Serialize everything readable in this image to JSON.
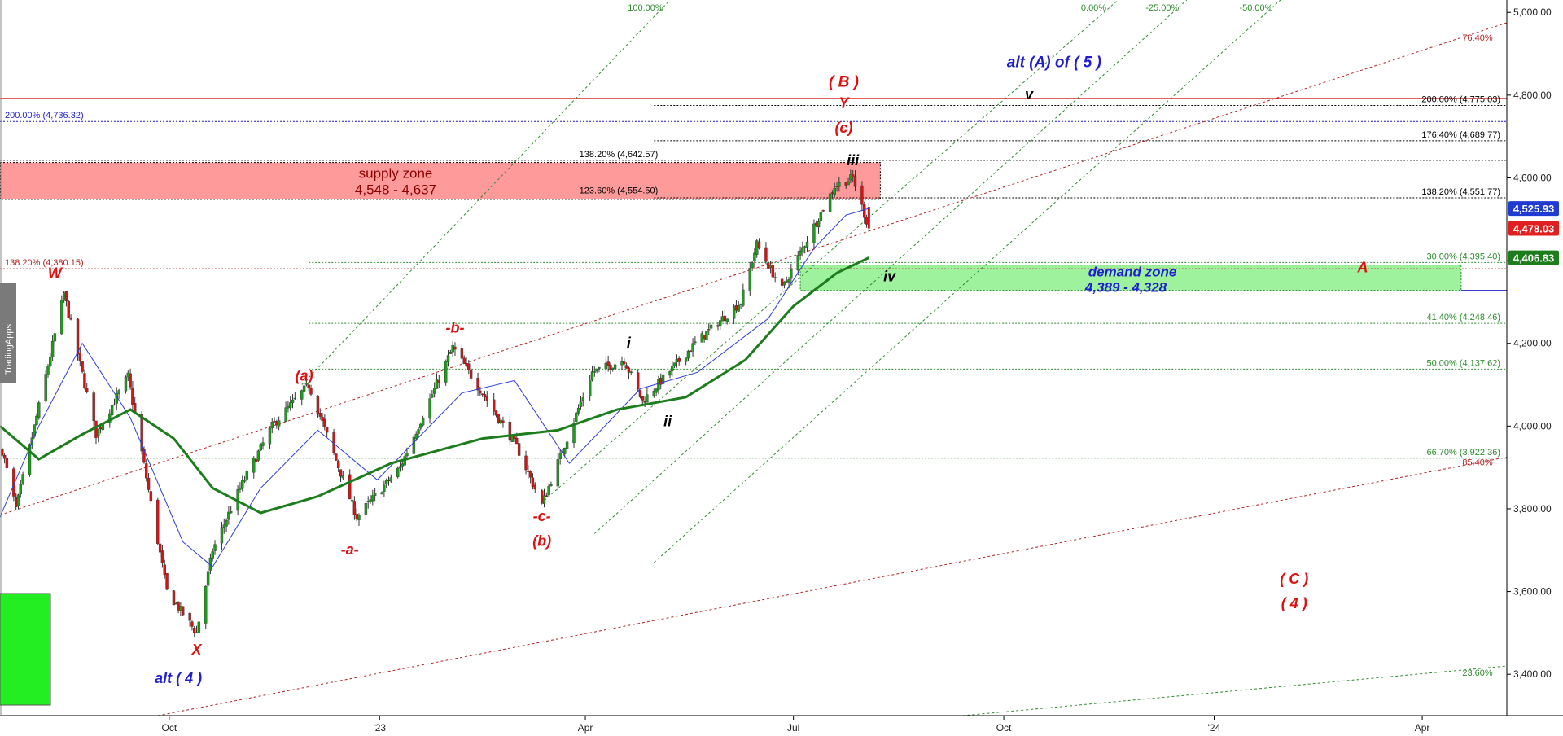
{
  "watermark": "TradingApps",
  "chart_data": {
    "type": "candlestick",
    "instrument_prices": {
      "last_price": "4,478.03",
      "blue_average": "4,525.93",
      "green_average": "4,406.83"
    },
    "y_axis": {
      "range": [
        3300,
        5030
      ],
      "ticks": [
        {
          "value": 5000,
          "label": "5,000.00"
        },
        {
          "value": 4800,
          "label": "4,800.00"
        },
        {
          "value": 4600,
          "label": "4,600.00"
        },
        {
          "value": 4400,
          "label": "4,400.00"
        },
        {
          "value": 4200,
          "label": "4,200.00"
        },
        {
          "value": 4000,
          "label": "4,000.00"
        },
        {
          "value": 3800,
          "label": "3,800.00"
        },
        {
          "value": 3600,
          "label": "3,600.00"
        },
        {
          "value": 3400,
          "label": "3,400.00"
        }
      ]
    },
    "x_axis": {
      "range": [
        "2022-07-19",
        "2024-05-08"
      ],
      "ticks": [
        {
          "date": "2022-10-01",
          "label": "Oct"
        },
        {
          "date": "2023-01-01",
          "label": "'23"
        },
        {
          "date": "2023-04-01",
          "label": "Apr"
        },
        {
          "date": "2023-07-01",
          "label": "Jul"
        },
        {
          "date": "2023-10-01",
          "label": "Oct"
        },
        {
          "date": "2024-01-01",
          "label": "'24"
        },
        {
          "date": "2024-04-01",
          "label": "Apr"
        }
      ]
    },
    "anchors": [
      {
        "date": "2022-07-20",
        "price": 3940
      },
      {
        "date": "2022-07-26",
        "price": 3800
      },
      {
        "date": "2022-08-16",
        "price": 4320
      },
      {
        "date": "2022-08-30",
        "price": 3980
      },
      {
        "date": "2022-09-13",
        "price": 4120
      },
      {
        "date": "2022-09-30",
        "price": 3600
      },
      {
        "date": "2022-10-13",
        "price": 3500
      },
      {
        "date": "2022-10-20",
        "price": 3700
      },
      {
        "date": "2022-11-01",
        "price": 3850
      },
      {
        "date": "2022-11-15",
        "price": 4000
      },
      {
        "date": "2022-12-01",
        "price": 4100
      },
      {
        "date": "2022-12-22",
        "price": 3780
      },
      {
        "date": "2023-01-10",
        "price": 3900
      },
      {
        "date": "2023-02-02",
        "price": 4190
      },
      {
        "date": "2023-02-15",
        "price": 4080
      },
      {
        "date": "2023-03-02",
        "price": 3950
      },
      {
        "date": "2023-03-13",
        "price": 3810
      },
      {
        "date": "2023-04-04",
        "price": 4130
      },
      {
        "date": "2023-04-18",
        "price": 4160
      },
      {
        "date": "2023-04-26",
        "price": 4060
      },
      {
        "date": "2023-05-19",
        "price": 4200
      },
      {
        "date": "2023-06-08",
        "price": 4300
      },
      {
        "date": "2023-06-15",
        "price": 4440
      },
      {
        "date": "2023-06-26",
        "price": 4330
      },
      {
        "date": "2023-07-05",
        "price": 4430
      },
      {
        "date": "2023-07-19",
        "price": 4580
      },
      {
        "date": "2023-07-27",
        "price": 4600
      },
      {
        "date": "2023-08-03",
        "price": 4478
      }
    ],
    "blue_ma_points": [
      {
        "date": "2022-07-19",
        "price": 3780
      },
      {
        "date": "2022-08-05",
        "price": 4000
      },
      {
        "date": "2022-08-24",
        "price": 4200
      },
      {
        "date": "2022-09-14",
        "price": 4020
      },
      {
        "date": "2022-10-07",
        "price": 3720
      },
      {
        "date": "2022-10-20",
        "price": 3660
      },
      {
        "date": "2022-11-10",
        "price": 3850
      },
      {
        "date": "2022-12-05",
        "price": 3990
      },
      {
        "date": "2022-12-31",
        "price": 3870
      },
      {
        "date": "2023-02-06",
        "price": 4080
      },
      {
        "date": "2023-03-01",
        "price": 4110
      },
      {
        "date": "2023-03-25",
        "price": 3910
      },
      {
        "date": "2023-04-25",
        "price": 4090
      },
      {
        "date": "2023-05-20",
        "price": 4130
      },
      {
        "date": "2023-06-20",
        "price": 4260
      },
      {
        "date": "2023-07-10",
        "price": 4430
      },
      {
        "date": "2023-07-24",
        "price": 4510
      },
      {
        "date": "2023-08-03",
        "price": 4526
      }
    ],
    "green_ma_points": [
      {
        "date": "2022-07-19",
        "price": 4000
      },
      {
        "date": "2022-08-05",
        "price": 3920
      },
      {
        "date": "2022-08-24",
        "price": 3980
      },
      {
        "date": "2022-09-14",
        "price": 4040
      },
      {
        "date": "2022-10-03",
        "price": 3970
      },
      {
        "date": "2022-10-20",
        "price": 3850
      },
      {
        "date": "2022-11-10",
        "price": 3790
      },
      {
        "date": "2022-12-05",
        "price": 3830
      },
      {
        "date": "2023-01-06",
        "price": 3910
      },
      {
        "date": "2023-02-15",
        "price": 3970
      },
      {
        "date": "2023-03-20",
        "price": 3990
      },
      {
        "date": "2023-04-15",
        "price": 4040
      },
      {
        "date": "2023-05-15",
        "price": 4070
      },
      {
        "date": "2023-06-10",
        "price": 4160
      },
      {
        "date": "2023-07-01",
        "price": 4290
      },
      {
        "date": "2023-07-20",
        "price": 4370
      },
      {
        "date": "2023-08-03",
        "price": 4407
      }
    ],
    "supply_zone": {
      "label": "supply zone",
      "range_label": "4,548 - 4,637",
      "low": 4548,
      "high": 4637,
      "from": "2022-07-19",
      "to": "2023-08-08",
      "color": "#ff9a9a"
    },
    "demand_zone": {
      "label": "demand zone",
      "range_label": "4,389 - 4,328",
      "low": 4328,
      "high": 4389,
      "from": "2023-07-04",
      "to": "2024-04-18",
      "color": "#9ef29e"
    },
    "fib_lines": [
      {
        "label": "200.00% (4,736.32)",
        "value": 4736.32,
        "color": "#1f1fcf",
        "style": "dotted",
        "from": "2022-07-19",
        "to": "2024-05-08",
        "label_side": "left"
      },
      {
        "label": "138.20% (4,380.15)",
        "value": 4380.15,
        "color": "#b22222",
        "style": "dotted",
        "from": "2022-07-19",
        "to": "2024-05-08",
        "label_side": "left"
      },
      {
        "label": "200.00% (4,775.03)",
        "value": 4775.03,
        "color": "#000000",
        "style": "dotted",
        "from": "2023-05-01",
        "to": "2024-05-08",
        "label_side": "right"
      },
      {
        "label": "176.40% (4,689.77)",
        "value": 4689.77,
        "color": "#000000",
        "style": "dotted",
        "from": "2023-05-01",
        "to": "2024-05-08",
        "label_side": "right"
      },
      {
        "label": "138.20% (4,551.77)",
        "value": 4551.77,
        "color": "#000000",
        "style": "dotted",
        "from": "2023-05-01",
        "to": "2024-05-08",
        "label_side": "right"
      },
      {
        "label": "138.20% (4,642.57)",
        "value": 4642.57,
        "color": "#000000",
        "style": "dotted",
        "from": "2022-07-19",
        "to": "2024-05-08",
        "label_side": "mid"
      },
      {
        "label": "123.60% (4,554.50)",
        "value": 4554.5,
        "color": "#000000",
        "style": "none",
        "from": "2022-07-19",
        "to": "2024-05-08",
        "label_side": "mid"
      },
      {
        "label": "30.00% (4,395.40)",
        "value": 4395.4,
        "color": "#2e8b2e",
        "style": "dotted",
        "from": "2022-12-01",
        "to": "2024-05-08",
        "label_side": "right"
      },
      {
        "label": "41.40% (4,248.46)",
        "value": 4248.46,
        "color": "#2e8b2e",
        "style": "dotted",
        "from": "2022-12-01",
        "to": "2024-05-08",
        "label_side": "right"
      },
      {
        "label": "50.00% (4,137.62)",
        "value": 4137.62,
        "color": "#2e8b2e",
        "style": "dotted",
        "from": "2022-12-01",
        "to": "2024-05-08",
        "label_side": "right"
      },
      {
        "label": "66.70% (3,922.36)",
        "value": 3922.36,
        "color": "#2e8b2e",
        "style": "dotted",
        "from": "2022-07-19",
        "to": "2024-05-08",
        "label_side": "right"
      }
    ],
    "red_line": {
      "value": 4792,
      "from": "2022-07-19",
      "to": "2024-05-08",
      "color": "#cc0000"
    },
    "trend_lines": [
      {
        "color": "#b22222",
        "from": {
          "date": "2022-07-19",
          "price": 3785
        },
        "to": {
          "date": "2024-05-08",
          "price": 4975
        },
        "label": "76.40%"
      },
      {
        "color": "#b22222",
        "from": {
          "date": "2022-09-26",
          "price": 3300
        },
        "to": {
          "date": "2024-05-08",
          "price": 3925
        },
        "label": "85.40%"
      },
      {
        "color": "#2e8b2e",
        "from": {
          "date": "2023-09-13",
          "price": 3300
        },
        "to": {
          "date": "2024-05-08",
          "price": 3420
        },
        "label": "23.60%"
      },
      {
        "color": "#2e8b2e",
        "from": {
          "date": "2022-11-28",
          "price": 4100
        },
        "to": {
          "date": "2023-05-08",
          "price": 5030
        },
        "label": "100.00%"
      },
      {
        "color": "#2e8b2e",
        "from": {
          "date": "2023-03-14",
          "price": 3820
        },
        "to": {
          "date": "2023-11-20",
          "price": 5030
        },
        "label": "0.00%"
      },
      {
        "color": "#2e8b2e",
        "from": {
          "date": "2023-04-05",
          "price": 3740
        },
        "to": {
          "date": "2023-12-20",
          "price": 5030
        },
        "label": "-25.00%"
      },
      {
        "color": "#2e8b2e",
        "from": {
          "date": "2023-05-01",
          "price": 3670
        },
        "to": {
          "date": "2024-01-30",
          "price": 5030
        },
        "label": "-50.00%"
      }
    ],
    "wave_labels": [
      {
        "text": "W",
        "date": "2022-08-12",
        "price": 4358,
        "color": "#dd1111",
        "size": 18
      },
      {
        "text": "X",
        "date": "2022-10-13",
        "price": 3448,
        "color": "#dd1111",
        "size": 18
      },
      {
        "text": "alt ( 4 )",
        "date": "2022-10-05",
        "price": 3379,
        "color": "#1f1fcf",
        "size": 18
      },
      {
        "text": "(a)",
        "date": "2022-11-29",
        "price": 4110,
        "color": "#dd1111",
        "size": 18
      },
      {
        "text": "-a-",
        "date": "2022-12-19",
        "price": 3690,
        "color": "#dd1111",
        "size": 18
      },
      {
        "text": "-b-",
        "date": "2023-02-03",
        "price": 4226,
        "color": "#dd1111",
        "size": 18
      },
      {
        "text": "-c-",
        "date": "2023-03-13",
        "price": 3770,
        "color": "#dd1111",
        "size": 18
      },
      {
        "text": "(b)",
        "date": "2023-03-13",
        "price": 3710,
        "color": "#dd1111",
        "size": 18
      },
      {
        "text": "i",
        "date": "2023-04-20",
        "price": 4190,
        "color": "#000000",
        "size": 18
      },
      {
        "text": "ii",
        "date": "2023-05-07",
        "price": 4000,
        "color": "#000000",
        "size": 18
      },
      {
        "text": "iii",
        "date": "2023-07-27",
        "price": 4630,
        "color": "#000000",
        "size": 18
      },
      {
        "text": "iv",
        "date": "2023-08-12",
        "price": 4350,
        "color": "#000000",
        "size": 18
      },
      {
        "text": "v",
        "date": "2023-10-12",
        "price": 4790,
        "color": "#000000",
        "size": 18
      },
      {
        "text": "(c)",
        "date": "2023-07-23",
        "price": 4709,
        "color": "#dd1111",
        "size": 18
      },
      {
        "text": "Y",
        "date": "2023-07-23",
        "price": 4769,
        "color": "#dd1111",
        "size": 18
      },
      {
        "text": "( B )",
        "date": "2023-07-23",
        "price": 4820,
        "color": "#dd1111",
        "size": 19
      },
      {
        "text": "alt (A) of ( 5 )",
        "date": "2023-10-23",
        "price": 4868,
        "color": "#1f1fcf",
        "size": 19
      },
      {
        "text": "A",
        "date": "2024-03-06",
        "price": 4372,
        "color": "#dd1111",
        "size": 18
      },
      {
        "text": "( C )",
        "date": "2024-02-05",
        "price": 3619,
        "color": "#dd1111",
        "size": 18
      },
      {
        "text": "( 4 )",
        "date": "2024-02-05",
        "price": 3560,
        "color": "#dd1111",
        "size": 18
      }
    ]
  }
}
